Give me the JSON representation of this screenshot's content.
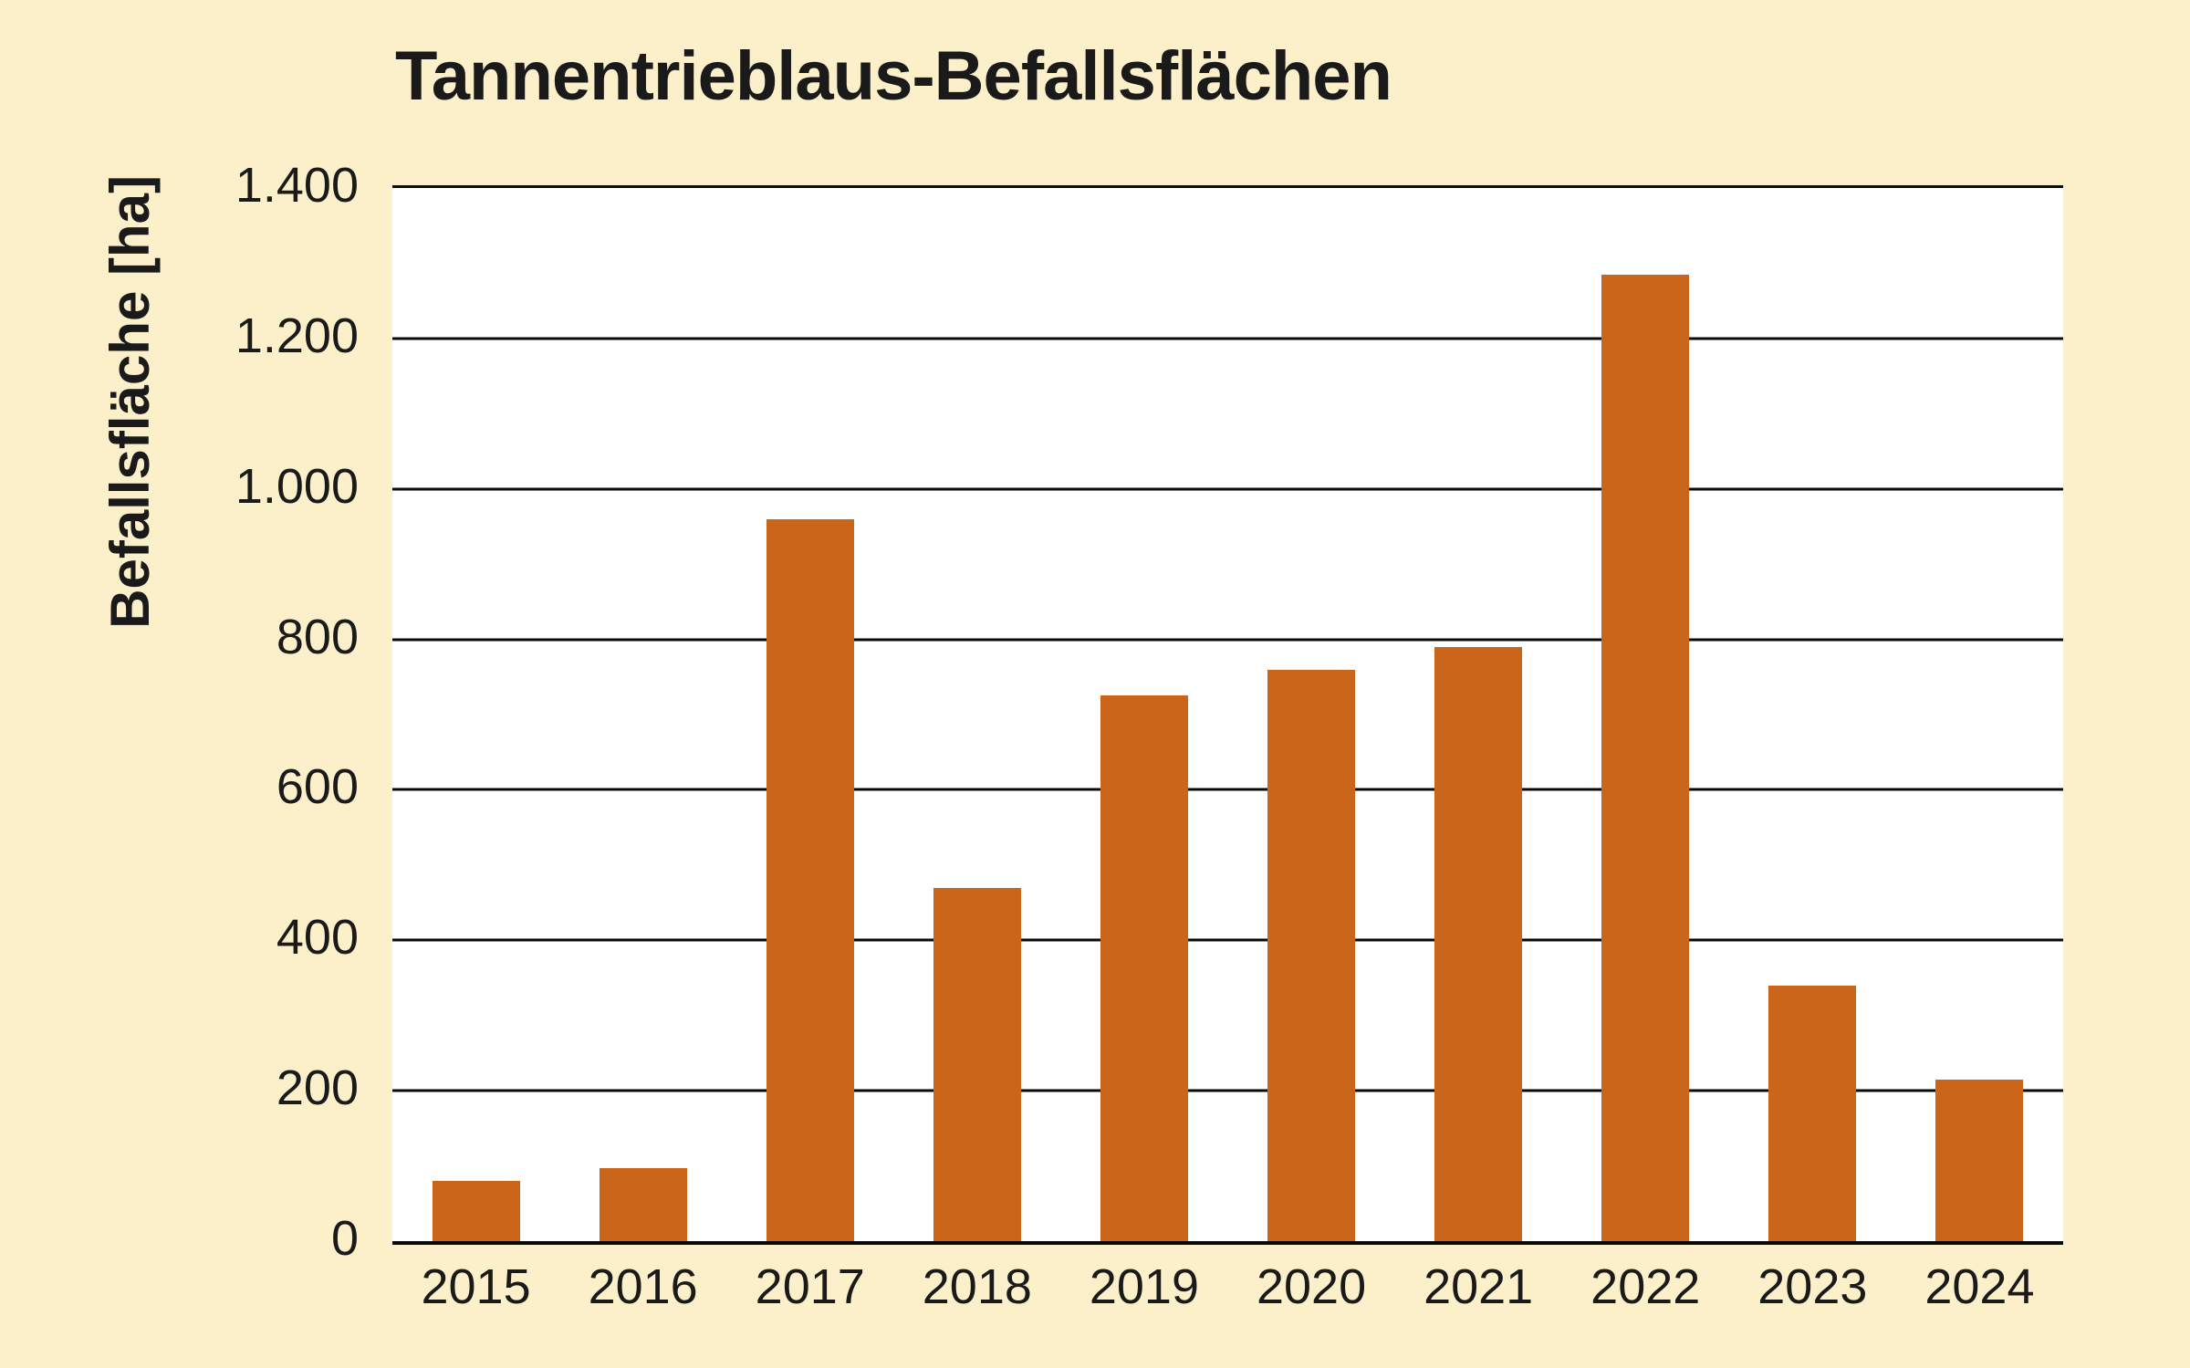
{
  "colors": {
    "background": "#FCF0CA",
    "plot_background": "#FFFFFF",
    "bar": "#CB651A",
    "line": "#0A0A0A",
    "text": "#1A1A1A"
  },
  "chart_data": {
    "type": "bar",
    "title": "Tannentrieblaus-Befallsflächen",
    "xlabel": "",
    "ylabel": "Befallsfläche [ha]",
    "categories": [
      "2015",
      "2016",
      "2017",
      "2018",
      "2019",
      "2020",
      "2021",
      "2022",
      "2023",
      "2024"
    ],
    "values": [
      80,
      97,
      960,
      470,
      725,
      760,
      790,
      1285,
      340,
      215
    ],
    "ylim": [
      0,
      1400
    ],
    "ytick_interval": 200,
    "ytick_labels": [
      "0",
      "200",
      "400",
      "600",
      "800",
      "1.000",
      "1.200",
      "1.400"
    ],
    "grid": "horizontal",
    "legend": "none"
  }
}
